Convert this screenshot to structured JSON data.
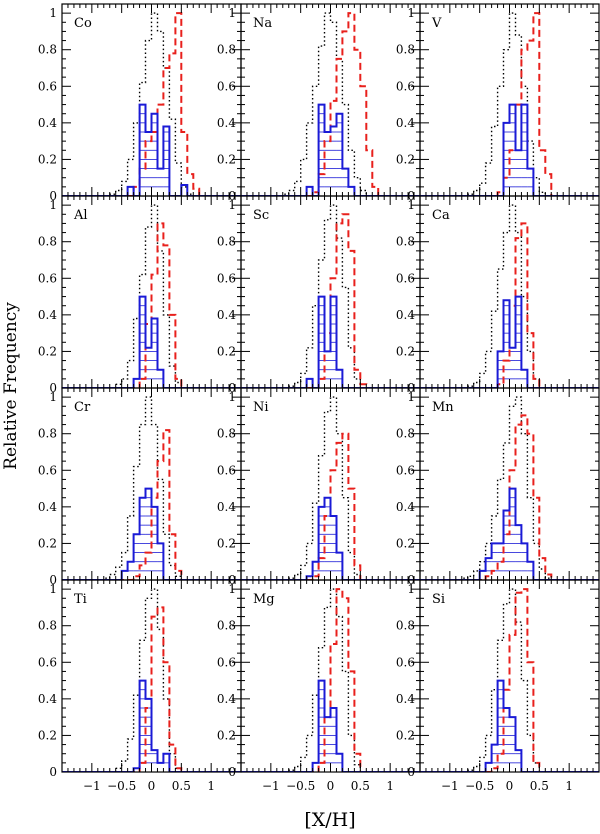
{
  "figure": {
    "ylabel": "Relative Frequency",
    "xlabel": "[X/H]",
    "xlim": [
      -1.5,
      1.5
    ],
    "ylim": [
      0,
      1.05
    ],
    "x_ticks": [
      -1,
      -0.5,
      0,
      0.5,
      1
    ],
    "x_tick_labels": [
      "−1",
      "−0.5",
      "0",
      "0.5",
      "1"
    ],
    "y_ticks": [
      0,
      0.2,
      0.4,
      0.6,
      0.8,
      1
    ],
    "y_tick_labels": [
      "0",
      "0.2",
      "0.4",
      "0.6",
      "0.8",
      "1"
    ],
    "colors": {
      "dotted": "#000000",
      "dashed": "#e8201c",
      "solid": "#1a1ad6"
    },
    "bin_width": 0.1
  },
  "chart_data": [
    {
      "type": "histogram",
      "element": "Co",
      "bin_edges_start": -1.5,
      "dotted": [
        0,
        0,
        0,
        0,
        0,
        0,
        0,
        0,
        0.01,
        0.03,
        0.08,
        0.2,
        0.4,
        0.62,
        0.85,
        1,
        0.9,
        0.7,
        0.42,
        0.18,
        0.05,
        0.01,
        0,
        0,
        0,
        0,
        0,
        0,
        0,
        0
      ],
      "dashed": [
        0,
        0,
        0,
        0,
        0,
        0,
        0,
        0,
        0,
        0,
        0,
        0,
        0.05,
        0.15,
        0.3,
        0.35,
        0.5,
        0.7,
        0.78,
        1,
        0.35,
        0.12,
        0.04,
        0,
        0,
        0,
        0,
        0,
        0,
        0
      ],
      "solid": [
        0,
        0,
        0,
        0,
        0,
        0,
        0,
        0,
        0,
        0,
        0,
        0.05,
        0,
        0.5,
        0.35,
        0.45,
        0.15,
        0.38,
        0,
        0,
        0.06,
        0,
        0,
        0,
        0,
        0,
        0,
        0,
        0,
        0
      ]
    },
    {
      "type": "histogram",
      "element": "Na",
      "bin_edges_start": -1.5,
      "dotted": [
        0,
        0,
        0,
        0,
        0,
        0,
        0,
        0.01,
        0.03,
        0.08,
        0.2,
        0.4,
        0.6,
        0.82,
        1,
        0.95,
        0.75,
        0.5,
        0.25,
        0.1,
        0.03,
        0,
        0,
        0,
        0,
        0,
        0,
        0,
        0,
        0
      ],
      "dashed": [
        0,
        0,
        0,
        0,
        0,
        0,
        0,
        0,
        0,
        0,
        0,
        0,
        0.02,
        0.12,
        0.3,
        0.52,
        0.75,
        0.9,
        1,
        0.8,
        0.6,
        0.25,
        0.05,
        0,
        0,
        0,
        0,
        0,
        0,
        0
      ],
      "solid": [
        0,
        0,
        0,
        0,
        0,
        0,
        0,
        0,
        0,
        0,
        0,
        0.05,
        0,
        0.5,
        0.35,
        0.38,
        0.45,
        0.15,
        0.05,
        0,
        0,
        0,
        0,
        0,
        0,
        0,
        0,
        0,
        0,
        0
      ]
    },
    {
      "type": "histogram",
      "element": "V",
      "bin_edges_start": -1.5,
      "dotted": [
        0,
        0,
        0,
        0,
        0,
        0,
        0,
        0,
        0.01,
        0.03,
        0.07,
        0.18,
        0.38,
        0.6,
        0.8,
        1,
        0.88,
        0.6,
        0.3,
        0.1,
        0.02,
        0,
        0,
        0,
        0,
        0,
        0,
        0,
        0,
        0
      ],
      "dashed": [
        0,
        0,
        0,
        0,
        0,
        0,
        0,
        0,
        0,
        0,
        0,
        0,
        0,
        0.02,
        0.1,
        0.25,
        0.5,
        0.8,
        0.85,
        1,
        0.25,
        0.12,
        0,
        0,
        0,
        0,
        0,
        0,
        0,
        0
      ],
      "solid": [
        0,
        0,
        0,
        0,
        0,
        0,
        0,
        0,
        0,
        0,
        0,
        0,
        0,
        0,
        0.4,
        0.5,
        0.25,
        0.5,
        0.15,
        0,
        0,
        0,
        0,
        0,
        0,
        0,
        0,
        0,
        0,
        0
      ]
    },
    {
      "type": "histogram",
      "element": "Al",
      "bin_edges_start": -1.5,
      "dotted": [
        0,
        0,
        0,
        0,
        0,
        0,
        0,
        0,
        0,
        0.02,
        0.05,
        0.15,
        0.38,
        0.62,
        0.88,
        1,
        0.75,
        0.4,
        0.12,
        0.03,
        0,
        0,
        0,
        0,
        0,
        0,
        0,
        0,
        0,
        0
      ],
      "dashed": [
        0,
        0,
        0,
        0,
        0,
        0,
        0,
        0,
        0,
        0,
        0,
        0,
        0,
        0.05,
        0.35,
        0.62,
        0.9,
        0.78,
        0.4,
        0.05,
        0,
        0,
        0,
        0,
        0,
        0,
        0,
        0,
        0,
        0
      ],
      "solid": [
        0,
        0,
        0,
        0,
        0,
        0,
        0,
        0,
        0,
        0,
        0,
        0,
        0.05,
        0.5,
        0.22,
        0.38,
        0.1,
        0,
        0,
        0,
        0,
        0,
        0,
        0,
        0,
        0,
        0,
        0,
        0,
        0
      ]
    },
    {
      "type": "histogram",
      "element": "Sc",
      "bin_edges_start": -1.5,
      "dotted": [
        0,
        0,
        0,
        0,
        0,
        0,
        0,
        0,
        0.01,
        0.03,
        0.08,
        0.22,
        0.45,
        0.7,
        0.92,
        1,
        0.82,
        0.55,
        0.22,
        0.05,
        0,
        0,
        0,
        0,
        0,
        0,
        0,
        0,
        0,
        0
      ],
      "dashed": [
        0,
        0,
        0,
        0,
        0,
        0,
        0,
        0,
        0,
        0,
        0,
        0,
        0,
        0.05,
        0.3,
        0.6,
        0.9,
        0.95,
        0.75,
        0.1,
        0.02,
        0,
        0,
        0,
        0,
        0,
        0,
        0,
        0,
        0
      ],
      "solid": [
        0,
        0,
        0,
        0,
        0,
        0,
        0,
        0,
        0,
        0,
        0,
        0.05,
        0,
        0.5,
        0.2,
        0.5,
        0.1,
        0,
        0,
        0,
        0,
        0,
        0,
        0,
        0,
        0,
        0,
        0,
        0,
        0
      ]
    },
    {
      "type": "histogram",
      "element": "Ca",
      "bin_edges_start": -1.5,
      "dotted": [
        0,
        0,
        0,
        0,
        0,
        0,
        0,
        0,
        0.01,
        0.03,
        0.08,
        0.2,
        0.42,
        0.65,
        0.85,
        1,
        0.85,
        0.5,
        0.2,
        0.05,
        0,
        0,
        0,
        0,
        0,
        0,
        0,
        0,
        0,
        0
      ],
      "dashed": [
        0,
        0,
        0,
        0,
        0,
        0,
        0,
        0,
        0,
        0,
        0,
        0,
        0,
        0.02,
        0.15,
        0.45,
        0.82,
        0.9,
        0.3,
        0.05,
        0,
        0,
        0,
        0,
        0,
        0,
        0,
        0,
        0,
        0
      ],
      "solid": [
        0,
        0,
        0,
        0,
        0,
        0,
        0,
        0,
        0,
        0,
        0,
        0,
        0,
        0.2,
        0.48,
        0.22,
        0.5,
        0.1,
        0,
        0,
        0,
        0,
        0,
        0,
        0,
        0,
        0,
        0,
        0,
        0
      ]
    },
    {
      "type": "histogram",
      "element": "Cr",
      "bin_edges_start": -1.5,
      "dotted": [
        0,
        0,
        0,
        0,
        0,
        0,
        0,
        0.01,
        0.03,
        0.07,
        0.15,
        0.35,
        0.62,
        0.85,
        1,
        0.85,
        0.55,
        0.25,
        0.08,
        0.02,
        0,
        0,
        0,
        0,
        0,
        0,
        0,
        0,
        0,
        0
      ],
      "dashed": [
        0,
        0,
        0,
        0,
        0,
        0,
        0,
        0,
        0,
        0,
        0,
        0,
        0.02,
        0.08,
        0.15,
        0.45,
        0.65,
        0.82,
        0.25,
        0.05,
        0,
        0,
        0,
        0,
        0,
        0,
        0,
        0,
        0,
        0
      ],
      "solid": [
        0,
        0,
        0,
        0,
        0,
        0,
        0,
        0,
        0,
        0,
        0.05,
        0.1,
        0.25,
        0.45,
        0.5,
        0.4,
        0.2,
        0,
        0,
        0,
        0,
        0,
        0,
        0,
        0,
        0,
        0,
        0,
        0,
        0
      ]
    },
    {
      "type": "histogram",
      "element": "Ni",
      "bin_edges_start": -1.5,
      "dotted": [
        0,
        0,
        0,
        0,
        0,
        0,
        0,
        0,
        0.01,
        0.03,
        0.08,
        0.2,
        0.42,
        0.68,
        0.92,
        1,
        0.8,
        0.45,
        0.15,
        0.03,
        0,
        0,
        0,
        0,
        0,
        0,
        0,
        0,
        0,
        0
      ],
      "dashed": [
        0,
        0,
        0,
        0,
        0,
        0,
        0,
        0,
        0,
        0,
        0,
        0,
        0.02,
        0.12,
        0.35,
        0.6,
        0.75,
        0.8,
        0.5,
        0.08,
        0,
        0,
        0,
        0,
        0,
        0,
        0,
        0,
        0,
        0
      ],
      "solid": [
        0,
        0,
        0,
        0,
        0,
        0,
        0,
        0,
        0,
        0,
        0,
        0.02,
        0.1,
        0.4,
        0.45,
        0.35,
        0.15,
        0,
        0,
        0,
        0,
        0,
        0,
        0,
        0,
        0,
        0,
        0,
        0,
        0
      ]
    },
    {
      "type": "histogram",
      "element": "Mn",
      "bin_edges_start": -1.5,
      "dotted": [
        0,
        0,
        0,
        0,
        0,
        0,
        0,
        0.01,
        0.02,
        0.05,
        0.1,
        0.2,
        0.35,
        0.55,
        0.75,
        0.95,
        1,
        0.8,
        0.45,
        0.2,
        0.06,
        0.01,
        0,
        0,
        0,
        0,
        0,
        0,
        0,
        0
      ],
      "dashed": [
        0,
        0,
        0,
        0,
        0,
        0,
        0,
        0,
        0,
        0,
        0,
        0.02,
        0.05,
        0.1,
        0.25,
        0.6,
        0.85,
        0.9,
        0.8,
        0.45,
        0.12,
        0.03,
        0,
        0,
        0,
        0,
        0,
        0,
        0,
        0
      ],
      "solid": [
        0,
        0,
        0,
        0,
        0,
        0,
        0,
        0,
        0,
        0,
        0.05,
        0.12,
        0.2,
        0.2,
        0.38,
        0.5,
        0.3,
        0.2,
        0.1,
        0,
        0,
        0,
        0,
        0,
        0,
        0,
        0,
        0,
        0,
        0
      ]
    },
    {
      "type": "histogram",
      "element": "Ti",
      "bin_edges_start": -1.5,
      "dotted": [
        0,
        0,
        0,
        0,
        0,
        0,
        0,
        0,
        0,
        0.02,
        0.06,
        0.18,
        0.42,
        0.72,
        0.95,
        1,
        0.78,
        0.4,
        0.1,
        0.02,
        0,
        0,
        0,
        0,
        0,
        0,
        0,
        0,
        0,
        0
      ],
      "dashed": [
        0,
        0,
        0,
        0,
        0,
        0,
        0,
        0,
        0,
        0,
        0,
        0,
        0,
        0.05,
        0.35,
        0.85,
        0.9,
        0.6,
        0.15,
        0.02,
        0,
        0,
        0,
        0,
        0,
        0,
        0,
        0,
        0,
        0
      ],
      "solid": [
        0,
        0,
        0,
        0,
        0,
        0,
        0,
        0,
        0,
        0,
        0,
        0,
        0.02,
        0.5,
        0.4,
        0.12,
        0.05,
        0.1,
        0,
        0,
        0,
        0,
        0,
        0,
        0,
        0,
        0,
        0,
        0,
        0
      ]
    },
    {
      "type": "histogram",
      "element": "Mg",
      "bin_edges_start": -1.5,
      "dotted": [
        0,
        0,
        0,
        0,
        0,
        0,
        0,
        0,
        0.01,
        0.03,
        0.08,
        0.2,
        0.42,
        0.68,
        0.9,
        1,
        0.85,
        0.55,
        0.2,
        0.04,
        0,
        0,
        0,
        0,
        0,
        0,
        0,
        0,
        0,
        0
      ],
      "dashed": [
        0,
        0,
        0,
        0,
        0,
        0,
        0,
        0,
        0,
        0,
        0,
        0,
        0,
        0.05,
        0.3,
        0.7,
        1,
        0.95,
        0.55,
        0.1,
        0,
        0,
        0,
        0,
        0,
        0,
        0,
        0,
        0,
        0
      ],
      "solid": [
        0,
        0,
        0,
        0,
        0,
        0,
        0,
        0,
        0,
        0,
        0,
        0,
        0.05,
        0.5,
        0.3,
        0.35,
        0.1,
        0,
        0,
        0,
        0,
        0,
        0,
        0,
        0,
        0,
        0,
        0,
        0,
        0
      ]
    },
    {
      "type": "histogram",
      "element": "Si",
      "bin_edges_start": -1.5,
      "dotted": [
        0,
        0,
        0,
        0,
        0,
        0,
        0,
        0,
        0.01,
        0.03,
        0.08,
        0.2,
        0.45,
        0.72,
        0.92,
        1,
        0.82,
        0.5,
        0.2,
        0.05,
        0,
        0,
        0,
        0,
        0,
        0,
        0,
        0,
        0,
        0
      ],
      "dashed": [
        0,
        0,
        0,
        0,
        0,
        0,
        0,
        0,
        0,
        0,
        0,
        0,
        0.02,
        0.1,
        0.45,
        0.75,
        0.98,
        1,
        0.6,
        0.05,
        0,
        0,
        0,
        0,
        0,
        0,
        0,
        0,
        0,
        0
      ],
      "solid": [
        0,
        0,
        0,
        0,
        0,
        0,
        0,
        0,
        0,
        0,
        0,
        0.05,
        0.15,
        0.5,
        0.35,
        0.3,
        0.12,
        0,
        0,
        0,
        0,
        0,
        0,
        0,
        0,
        0,
        0,
        0,
        0,
        0
      ]
    }
  ]
}
